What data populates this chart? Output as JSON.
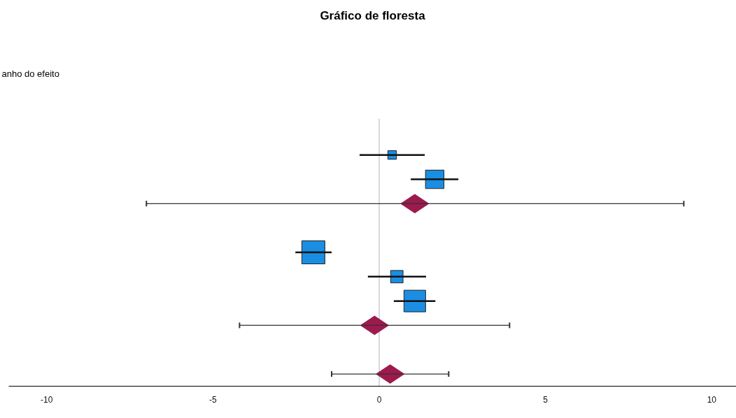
{
  "chart_data": {
    "type": "scatter",
    "orientation": "horizontal",
    "title": "Gráfico de floresta",
    "annotations": [
      "anho do efeito"
    ],
    "categories": [
      null,
      null,
      null,
      null,
      null,
      null,
      null,
      null,
      null,
      null,
      null
    ],
    "series": [
      {
        "type": "bubble",
        "marker": "square",
        "color": "#1a8ee2",
        "values": [
          null,
          0.39,
          1.67,
          null,
          null,
          -1.98,
          0.53,
          1.07,
          null,
          null,
          null
        ],
        "sizes": [
          null,
          0.14,
          0.64,
          null,
          null,
          1,
          0.29,
          0.88,
          null,
          null,
          null
        ],
        "errors": [
          null,
          [
            -0.59,
            1.37
          ],
          [
            0.95,
            2.38
          ],
          null,
          null,
          [
            -2.52,
            -1.43
          ],
          [
            -0.34,
            1.41
          ],
          [
            0.44,
            1.69
          ],
          null,
          null,
          null
        ]
      },
      {
        "marker": "diamond",
        "color": "#9c1a4e",
        "values": [
          null,
          null,
          null,
          1.07,
          null,
          null,
          null,
          null,
          -0.14,
          null,
          0.33
        ],
        "errors": [
          null,
          null,
          null,
          [
            -7.0,
            9.16
          ],
          null,
          null,
          null,
          null,
          [
            -4.2,
            3.92
          ],
          null,
          [
            -1.43,
            2.09
          ]
        ]
      }
    ],
    "xlim": [
      -11.14,
      10.74
    ],
    "xticks": [
      -10,
      -5,
      0,
      5,
      10
    ],
    "tick_labels": "x",
    "ref_lines": [
      {
        "axis": "x",
        "value": 0,
        "color": "#d9d9d9"
      }
    ]
  }
}
